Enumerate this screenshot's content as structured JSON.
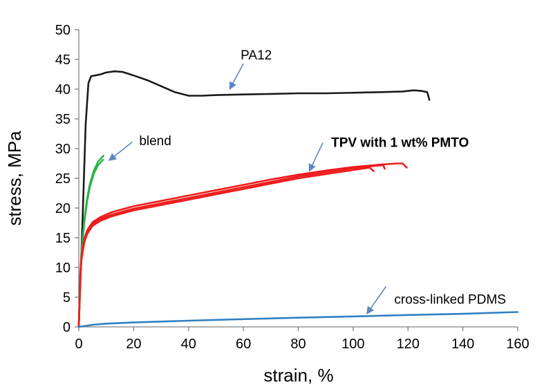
{
  "chart_data": {
    "type": "line",
    "title": "",
    "xlabel": "strain, %",
    "ylabel": "stress, MPa",
    "xlim": [
      0,
      160
    ],
    "ylim": [
      0,
      50
    ],
    "xticks": [
      0,
      20,
      40,
      60,
      80,
      100,
      120,
      140,
      160
    ],
    "yticks": [
      0,
      5,
      10,
      15,
      20,
      25,
      30,
      35,
      40,
      45,
      50
    ],
    "grid": false,
    "legend": "none",
    "series": [
      {
        "name": "PA12",
        "color": "#1a1a1a",
        "curves": [
          [
            [
              0,
              0
            ],
            [
              1.5,
              20
            ],
            [
              2.5,
              34
            ],
            [
              3.5,
              41
            ],
            [
              4.5,
              42.2
            ],
            [
              6,
              42.3
            ],
            [
              8,
              42.5
            ],
            [
              10,
              42.8
            ],
            [
              13,
              43.0
            ],
            [
              16,
              42.9
            ],
            [
              20,
              42.3
            ],
            [
              25,
              41.5
            ],
            [
              30,
              40.5
            ],
            [
              35,
              39.5
            ],
            [
              40,
              38.9
            ],
            [
              45,
              38.9
            ],
            [
              50,
              39.0
            ],
            [
              60,
              39.1
            ],
            [
              70,
              39.2
            ],
            [
              80,
              39.3
            ],
            [
              90,
              39.3
            ],
            [
              100,
              39.4
            ],
            [
              110,
              39.5
            ],
            [
              118,
              39.6
            ],
            [
              122,
              39.8
            ],
            [
              125,
              39.7
            ],
            [
              127,
              39.5
            ],
            [
              127.8,
              38.2
            ]
          ]
        ]
      },
      {
        "name": "blend",
        "color": "#2db34a",
        "curves": [
          [
            [
              0,
              0
            ],
            [
              0.5,
              8
            ],
            [
              1,
              13
            ],
            [
              2,
              18
            ],
            [
              3,
              21.5
            ],
            [
              4,
              24
            ],
            [
              5.5,
              26.3
            ],
            [
              7,
              27.8
            ],
            [
              9,
              28.8
            ]
          ],
          [
            [
              0,
              0
            ],
            [
              0.5,
              7.5
            ],
            [
              1,
              12.5
            ],
            [
              2,
              17.5
            ],
            [
              3,
              21
            ],
            [
              4,
              23.5
            ],
            [
              5.5,
              25.8
            ],
            [
              7,
              27.2
            ],
            [
              8.8,
              28.1
            ]
          ]
        ]
      },
      {
        "name": "TPV with 1 wt% PMTO",
        "color": "#ee1c1c",
        "curves": [
          [
            [
              0,
              0
            ],
            [
              0.5,
              8
            ],
            [
              1,
              11.5
            ],
            [
              2,
              14.2
            ],
            [
              3,
              15.6
            ],
            [
              5,
              17.0
            ],
            [
              8,
              17.9
            ],
            [
              12,
              18.6
            ],
            [
              20,
              19.6
            ],
            [
              30,
              20.5
            ],
            [
              40,
              21.4
            ],
            [
              50,
              22.3
            ],
            [
              60,
              23.2
            ],
            [
              70,
              24.1
            ],
            [
              80,
              25.0
            ],
            [
              90,
              25.7
            ],
            [
              100,
              26.4
            ],
            [
              106,
              26.8
            ],
            [
              107.5,
              26.2
            ]
          ],
          [
            [
              0,
              0
            ],
            [
              0.5,
              8.3
            ],
            [
              1,
              11.8
            ],
            [
              2,
              14.5
            ],
            [
              3,
              15.9
            ],
            [
              5,
              17.3
            ],
            [
              8,
              18.2
            ],
            [
              12,
              18.9
            ],
            [
              20,
              19.9
            ],
            [
              30,
              20.8
            ],
            [
              40,
              21.7
            ],
            [
              50,
              22.6
            ],
            [
              60,
              23.5
            ],
            [
              70,
              24.4
            ],
            [
              80,
              25.3
            ],
            [
              90,
              26.0
            ],
            [
              100,
              26.7
            ],
            [
              108,
              27.1
            ],
            [
              111,
              27.2
            ],
            [
              111.5,
              26.6
            ]
          ],
          [
            [
              0,
              0
            ],
            [
              0.5,
              8.6
            ],
            [
              1,
              12.1
            ],
            [
              2,
              14.8
            ],
            [
              3,
              16.2
            ],
            [
              5,
              17.6
            ],
            [
              8,
              18.5
            ],
            [
              12,
              19.3
            ],
            [
              20,
              20.3
            ],
            [
              30,
              21.2
            ],
            [
              40,
              22.1
            ],
            [
              50,
              23.0
            ],
            [
              60,
              23.9
            ],
            [
              70,
              24.8
            ],
            [
              80,
              25.6
            ],
            [
              90,
              26.3
            ],
            [
              100,
              26.9
            ],
            [
              110,
              27.3
            ],
            [
              116,
              27.5
            ],
            [
              118,
              27.5
            ],
            [
              119.5,
              26.8
            ]
          ]
        ]
      },
      {
        "name": "cross-linked PDMS",
        "color": "#2f7fc1",
        "curves": [
          [
            [
              0,
              0
            ],
            [
              5,
              0.35
            ],
            [
              10,
              0.55
            ],
            [
              20,
              0.75
            ],
            [
              30,
              0.9
            ],
            [
              40,
              1.05
            ],
            [
              60,
              1.3
            ],
            [
              80,
              1.55
            ],
            [
              100,
              1.75
            ],
            [
              120,
              2.0
            ],
            [
              140,
              2.2
            ],
            [
              160,
              2.5
            ]
          ]
        ]
      }
    ],
    "annotations": [
      {
        "text": "PA12",
        "bold": false,
        "label_at": [
          59,
          45.8
        ],
        "arrow_from": [
          60,
          44.3
        ],
        "arrow_to": [
          55,
          40.0
        ]
      },
      {
        "text": "blend",
        "bold": false,
        "label_at": [
          22,
          31.4
        ],
        "arrow_from": [
          19.5,
          31.1
        ],
        "arrow_to": [
          11,
          28.0
        ]
      },
      {
        "text": "TPV with 1 wt% PMTO",
        "bold": true,
        "label_at": [
          92,
          31.1
        ],
        "arrow_from": [
          89,
          31.0
        ],
        "arrow_to": [
          84,
          26.2
        ]
      },
      {
        "text": "cross-linked PDMS",
        "bold": false,
        "label_at": [
          115,
          4.7
        ],
        "arrow_from": [
          112,
          6.8
        ],
        "arrow_to": [
          105,
          2.2
        ]
      }
    ]
  }
}
